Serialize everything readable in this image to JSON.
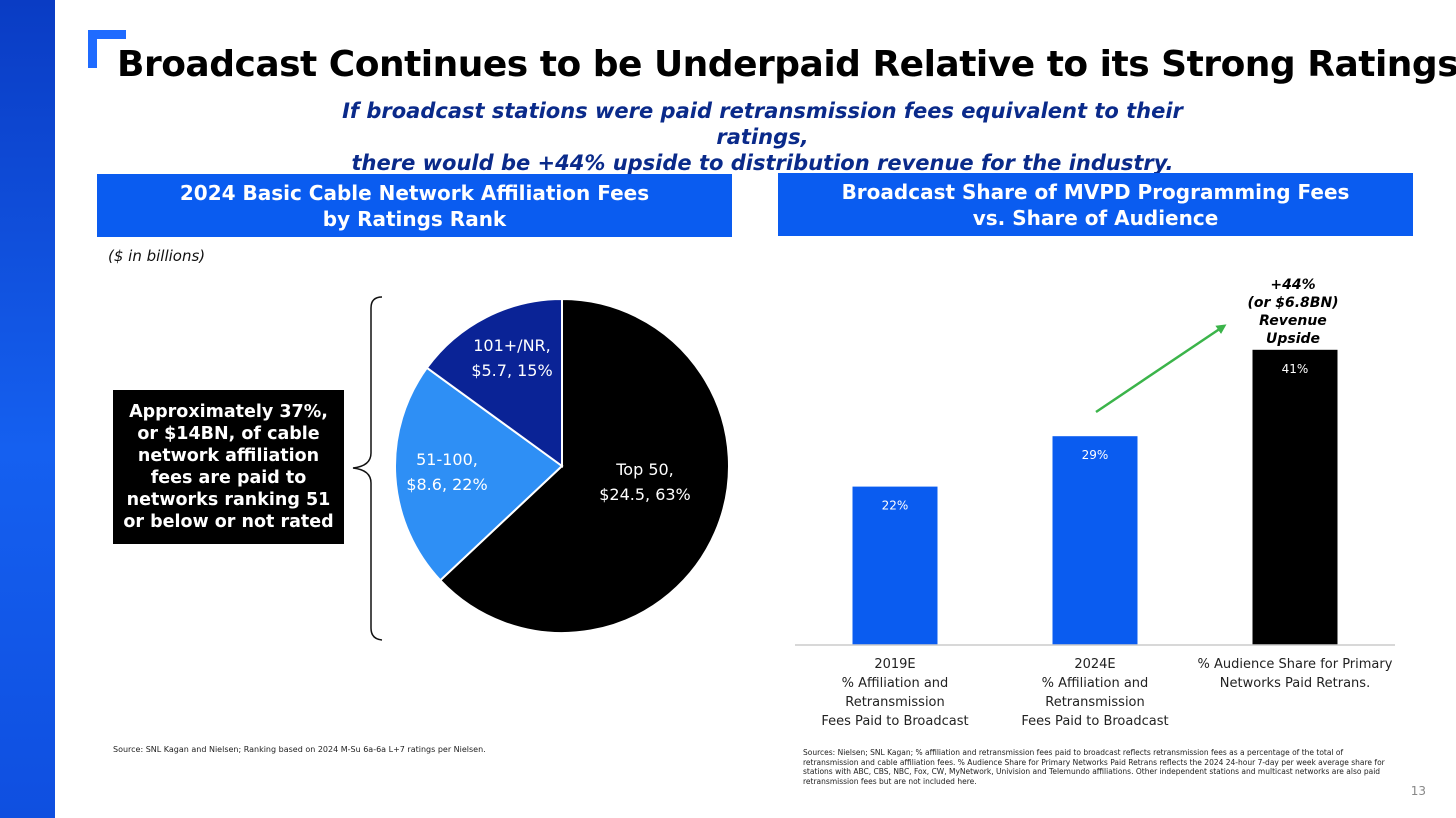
{
  "title": "Broadcast Continues to be Underpaid Relative to its Strong Ratings",
  "subtitle": {
    "line1": "If broadcast stations were paid retransmission fees equivalent to their ratings,",
    "line2": "there would be +44% upside to distribution revenue for the industry."
  },
  "left_panel": {
    "title_line1": "2024 Basic Cable Network Affiliation Fees",
    "title_line2": "by Ratings Rank",
    "units": "($ in billions)",
    "callout": "Approximately 37%, or $14BN, of cable network affiliation fees are paid to networks ranking 51 or below or not rated",
    "source": "Source:  SNL Kagan and Nielsen;  Ranking based on 2024 M-Su 6a-6a L+7 ratings per Nielsen."
  },
  "right_panel": {
    "title_line1": "Broadcast Share of MVPD Programming Fees",
    "title_line2": "vs. Share of Audience",
    "upside_line1": "+44%",
    "upside_line2": "(or $6.8BN)",
    "upside_line3": "Revenue",
    "upside_line4": "Upside",
    "source": "Sources:  Nielsen;  SNL Kagan;  % affiliation and retransmission fees paid to broadcast reflects retransmission fees as a percentage of the total of retransmission and cable affiliation fees.  % Audience Share for Primary Networks Paid Retrans reflects the 2024 24-hour 7-day per week average share for stations with ABC, CBS, NBC, Fox, CW, MyNetwork, Univision and Telemundo affiliations.  Other independent stations and multicast networks are also paid retransmission fees but are not included here."
  },
  "page_number": "13",
  "colors": {
    "brand_blue": "#0a5cf0",
    "light_blue": "#2e8ff5",
    "navy": "#0a2396",
    "black": "#000000",
    "arrow_green": "#3bb44a"
  },
  "chart_data": [
    {
      "type": "pie",
      "title": "2024 Basic Cable Network Affiliation Fees by Ratings Rank",
      "units": "($ in billions)",
      "slices": [
        {
          "label": "Top 50,",
          "value_text": "$24.5, 63%",
          "value": 24.5,
          "percent": 63,
          "color": "#000000"
        },
        {
          "label": "51-100,",
          "value_text": "$8.6, 22%",
          "value": 8.6,
          "percent": 22,
          "color": "#2e8ff5"
        },
        {
          "label": "101+/NR,",
          "value_text": "$5.7, 15%",
          "value": 5.7,
          "percent": 15,
          "color": "#0a2396"
        }
      ]
    },
    {
      "type": "bar",
      "title": "Broadcast Share of MVPD Programming Fees vs. Share of Audience",
      "categories": [
        "2019E % Affiliation and Retransmission Fees Paid to Broadcast",
        "2024E % Affiliation and Retransmission Fees Paid to Broadcast",
        "% Audience Share for Primary Networks Paid Retrans."
      ],
      "category_lines": [
        [
          "2019E",
          "% Affiliation and Retransmission",
          "Fees Paid to Broadcast"
        ],
        [
          "2024E",
          "% Affiliation and Retransmission",
          "Fees Paid to Broadcast"
        ],
        [
          "% Audience Share for Primary",
          "Networks Paid Retrans."
        ]
      ],
      "values": [
        22,
        29,
        41
      ],
      "value_labels": [
        "22%",
        "29%",
        "41%"
      ],
      "colors": [
        "#0a5cf0",
        "#0a5cf0",
        "#000000"
      ],
      "ylim": [
        0,
        50
      ]
    }
  ]
}
